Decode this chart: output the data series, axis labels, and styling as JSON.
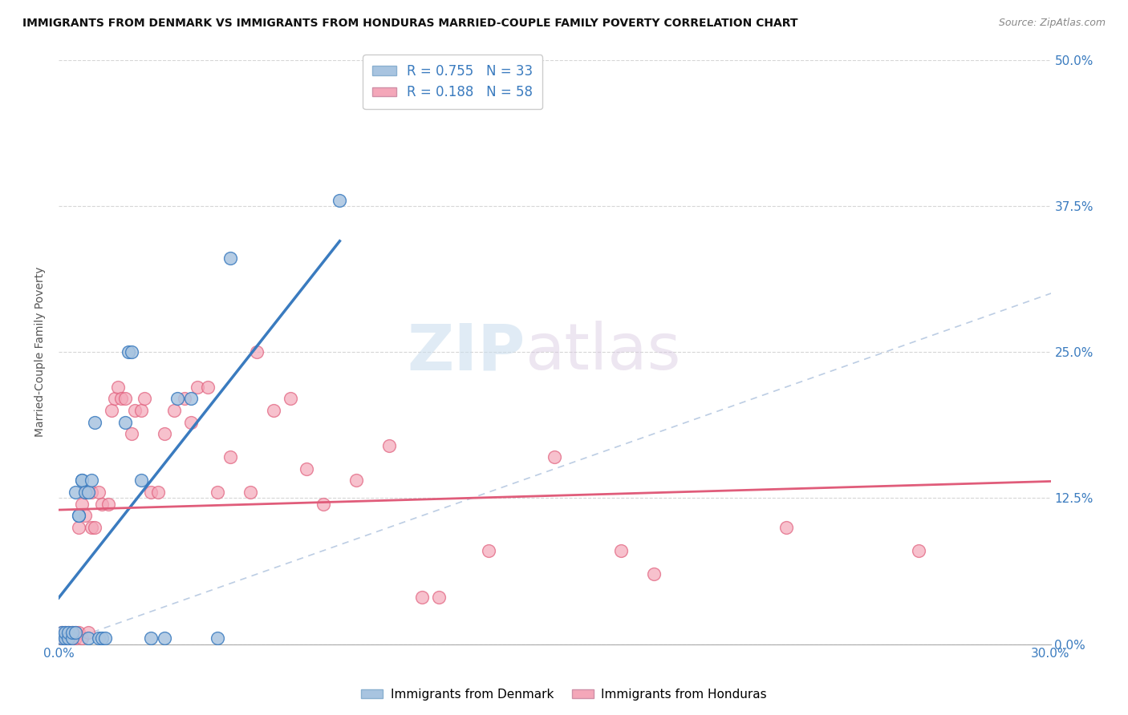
{
  "title": "IMMIGRANTS FROM DENMARK VS IMMIGRANTS FROM HONDURAS MARRIED-COUPLE FAMILY POVERTY CORRELATION CHART",
  "source": "Source: ZipAtlas.com",
  "ylabel": "Married-Couple Family Poverty",
  "legend_label1": "Immigrants from Denmark",
  "legend_label2": "Immigrants from Honduras",
  "R1": "0.755",
  "N1": "33",
  "R2": "0.188",
  "N2": "58",
  "xlim": [
    0,
    0.3
  ],
  "ylim": [
    0,
    0.5
  ],
  "xticks": [
    0.0,
    0.05,
    0.1,
    0.15,
    0.2,
    0.25,
    0.3
  ],
  "yticks": [
    0.0,
    0.125,
    0.25,
    0.375,
    0.5
  ],
  "ytick_labels": [
    "0.0%",
    "12.5%",
    "25.0%",
    "37.5%",
    "50.0%"
  ],
  "color_denmark": "#a8c4e0",
  "color_honduras": "#f4a7b9",
  "color_denmark_line": "#3a7bbf",
  "color_honduras_line": "#e05c7a",
  "color_diag_line": "#a0b8d8",
  "background_color": "#ffffff",
  "watermark_zip": "ZIP",
  "watermark_atlas": "atlas",
  "denmark_x": [
    0.001,
    0.001,
    0.002,
    0.002,
    0.003,
    0.003,
    0.004,
    0.004,
    0.005,
    0.005,
    0.006,
    0.006,
    0.007,
    0.007,
    0.008,
    0.009,
    0.009,
    0.01,
    0.011,
    0.012,
    0.013,
    0.014,
    0.02,
    0.021,
    0.022,
    0.025,
    0.028,
    0.032,
    0.036,
    0.04,
    0.048,
    0.052,
    0.085
  ],
  "denmark_y": [
    0.005,
    0.01,
    0.005,
    0.01,
    0.005,
    0.01,
    0.005,
    0.01,
    0.13,
    0.01,
    0.11,
    0.11,
    0.14,
    0.14,
    0.13,
    0.005,
    0.13,
    0.14,
    0.19,
    0.005,
    0.005,
    0.005,
    0.19,
    0.25,
    0.25,
    0.14,
    0.005,
    0.005,
    0.21,
    0.21,
    0.005,
    0.33,
    0.38
  ],
  "honduras_x": [
    0.001,
    0.001,
    0.002,
    0.002,
    0.003,
    0.003,
    0.004,
    0.004,
    0.005,
    0.005,
    0.006,
    0.006,
    0.007,
    0.007,
    0.008,
    0.008,
    0.009,
    0.01,
    0.01,
    0.011,
    0.012,
    0.013,
    0.015,
    0.016,
    0.017,
    0.018,
    0.019,
    0.02,
    0.022,
    0.023,
    0.025,
    0.026,
    0.028,
    0.03,
    0.032,
    0.035,
    0.038,
    0.04,
    0.042,
    0.045,
    0.048,
    0.052,
    0.058,
    0.06,
    0.065,
    0.07,
    0.075,
    0.08,
    0.09,
    0.1,
    0.11,
    0.115,
    0.13,
    0.15,
    0.17,
    0.18,
    0.22,
    0.26
  ],
  "honduras_y": [
    0.005,
    0.01,
    0.005,
    0.01,
    0.01,
    0.005,
    0.01,
    0.005,
    0.01,
    0.005,
    0.01,
    0.1,
    0.005,
    0.12,
    0.11,
    0.13,
    0.01,
    0.13,
    0.1,
    0.1,
    0.13,
    0.12,
    0.12,
    0.2,
    0.21,
    0.22,
    0.21,
    0.21,
    0.18,
    0.2,
    0.2,
    0.21,
    0.13,
    0.13,
    0.18,
    0.2,
    0.21,
    0.19,
    0.22,
    0.22,
    0.13,
    0.16,
    0.13,
    0.25,
    0.2,
    0.21,
    0.15,
    0.12,
    0.14,
    0.17,
    0.04,
    0.04,
    0.08,
    0.16,
    0.08,
    0.06,
    0.1,
    0.08
  ]
}
